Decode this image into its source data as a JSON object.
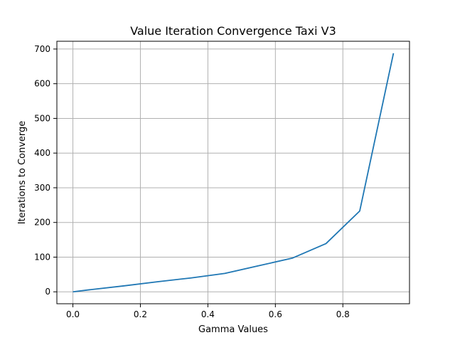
{
  "colors": {
    "line": "#1f77b4",
    "grid": "#b0b0b0",
    "axes": "#000000",
    "background": "#ffffff"
  },
  "chart_data": {
    "type": "line",
    "title": "Value Iteration Convergence Taxi V3",
    "xlabel": "Gamma Values",
    "ylabel": "Iterations to Converge",
    "xlim": [
      -0.0475,
      0.9975
    ],
    "ylim": [
      -34.4,
      722.4
    ],
    "xticks": [
      0.0,
      0.2,
      0.4,
      0.6,
      0.8
    ],
    "xtick_labels": [
      "0.0",
      "0.2",
      "0.4",
      "0.6",
      "0.8"
    ],
    "yticks": [
      0,
      100,
      200,
      300,
      400,
      500,
      600,
      700
    ],
    "ytick_labels": [
      "0",
      "100",
      "200",
      "300",
      "400",
      "500",
      "600",
      "700"
    ],
    "grid": true,
    "legend": null,
    "series": [
      {
        "x": [
          0.0,
          0.05,
          0.15,
          0.25,
          0.35,
          0.45,
          0.55,
          0.65,
          0.75,
          0.85,
          0.95
        ],
        "y": [
          0,
          6,
          17,
          29,
          40,
          53,
          75,
          97,
          139,
          233,
          688
        ]
      }
    ]
  }
}
